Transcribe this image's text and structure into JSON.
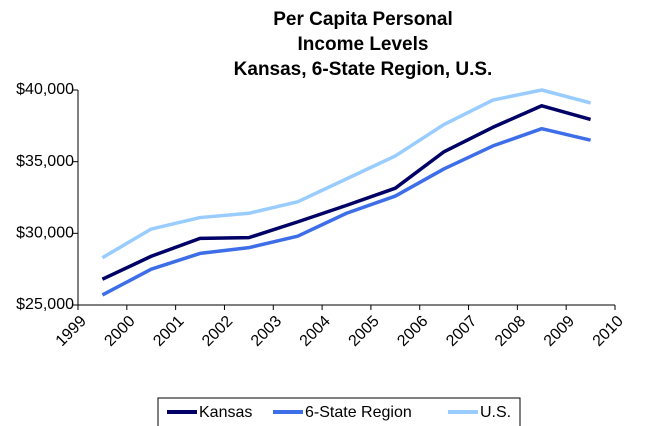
{
  "chart_data": {
    "type": "line",
    "title": [
      "Per Capita Personal",
      "Income Levels",
      "Kansas, 6-State Region, U.S."
    ],
    "x": [
      1999.5,
      2000.5,
      2001.5,
      2002.5,
      2003.5,
      2004.5,
      2005.5,
      2006.5,
      2007.5,
      2008.5,
      2009.5
    ],
    "xlim": [
      1999,
      2010
    ],
    "xticks": [
      1999,
      2000,
      2001,
      2002,
      2003,
      2004,
      2005,
      2006,
      2007,
      2008,
      2009,
      2010
    ],
    "ylim": [
      25000,
      40000
    ],
    "yticks": [
      {
        "value": 25000,
        "label": "$25,000"
      },
      {
        "value": 30000,
        "label": "$30,000"
      },
      {
        "value": 35000,
        "label": "$35,000"
      },
      {
        "value": 40000,
        "label": "$40,000"
      }
    ],
    "grid": false,
    "legend": "bottom",
    "series": [
      {
        "name": "Kansas",
        "color": "#000066",
        "values": [
          26800,
          28400,
          29650,
          29700,
          30800,
          31950,
          33150,
          35700,
          37400,
          38900,
          37950
        ]
      },
      {
        "name": "6-State Region",
        "color": "#3d6ee8",
        "values": [
          25700,
          27500,
          28600,
          29000,
          29800,
          31400,
          32600,
          34500,
          36100,
          37300,
          36500
        ]
      },
      {
        "name": "U.S.",
        "color": "#99ccff",
        "values": [
          28300,
          30300,
          31100,
          31400,
          32200,
          33800,
          35400,
          37600,
          39300,
          40000,
          39100
        ]
      }
    ]
  }
}
